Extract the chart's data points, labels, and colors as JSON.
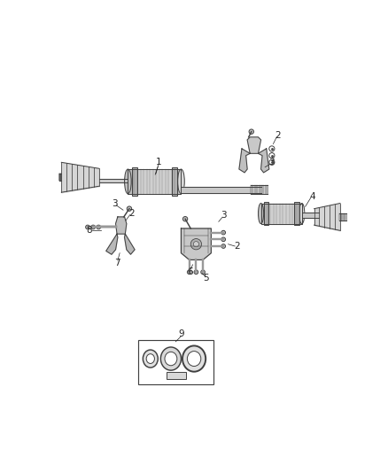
{
  "bg_color": "#ffffff",
  "line_color": "#404040",
  "fill_light": "#d8d8d8",
  "fill_mid": "#b8b8b8",
  "fill_dark": "#888888",
  "figsize": [
    4.38,
    5.33
  ],
  "dpi": 100,
  "label_fs": 7.5,
  "label_color": "#222222"
}
